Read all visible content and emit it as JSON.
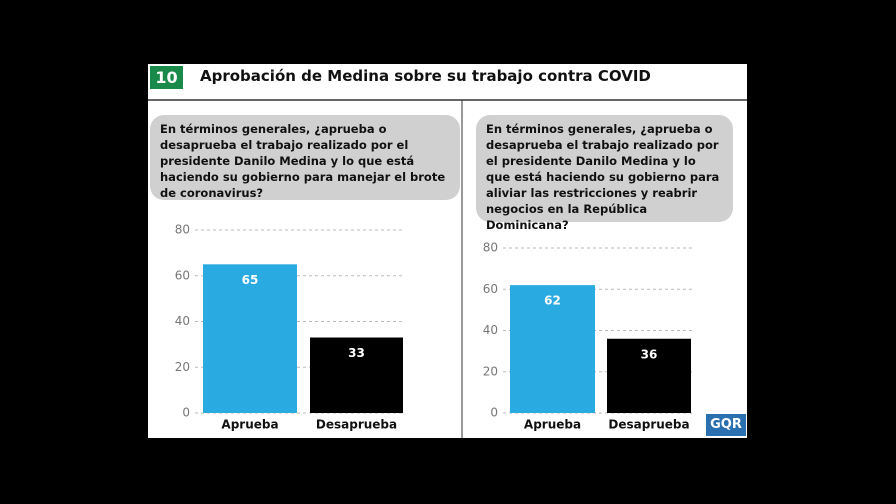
{
  "header": {
    "number": "10",
    "title": "Aprobación de Medina sobre su trabajo contra COVID"
  },
  "logo": "GQR",
  "chart_data": [
    {
      "type": "bar",
      "title": "En términos generales, ¿aprueba o desaprueba el trabajo realizado por el presidente Danilo Medina y lo que está haciendo su gobierno para manejar el brote de coronavirus?",
      "categories": [
        "Aprueba",
        "Desaprueba"
      ],
      "values": [
        65,
        33
      ],
      "colors": [
        "#29abe2",
        "#000000"
      ],
      "ylim": [
        0,
        80
      ],
      "yticks": [
        0,
        20,
        40,
        60,
        80
      ],
      "grid": true
    },
    {
      "type": "bar",
      "title": "En términos generales, ¿aprueba o desaprueba el trabajo realizado por el presidente Danilo Medina y lo que está haciendo su gobierno para aliviar las restricciones y reabrir negocios en la República Dominicana?",
      "categories": [
        "Aprueba",
        "Desaprueba"
      ],
      "values": [
        62,
        36
      ],
      "colors": [
        "#29abe2",
        "#000000"
      ],
      "ylim": [
        0,
        80
      ],
      "yticks": [
        0,
        20,
        40,
        60,
        80
      ],
      "grid": true
    }
  ]
}
